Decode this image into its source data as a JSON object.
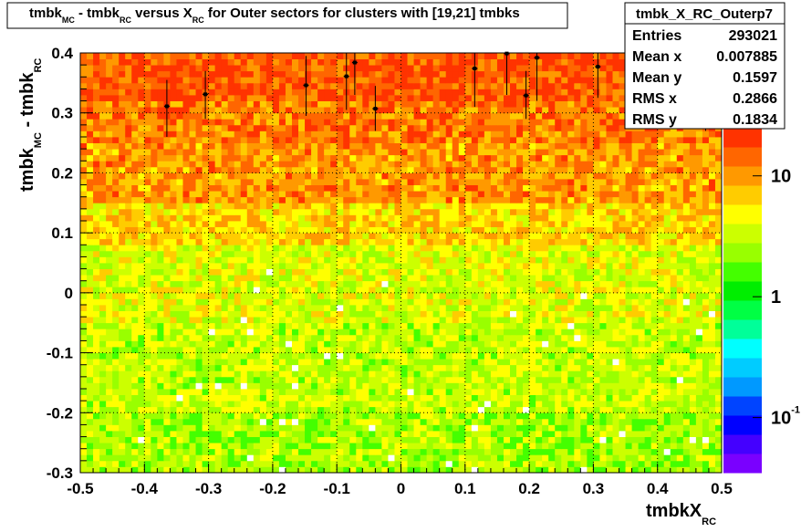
{
  "title": {
    "t1": "tmbk",
    "s1": "MC",
    "t2": " - tmbk",
    "s2": "RC",
    "t3": " versus X",
    "s3": "RC",
    "t4": " for Outer sectors for clusters with [19,21] tmbks"
  },
  "stats": {
    "name": "tmbk_X_RC_Outerp7",
    "rows": [
      {
        "label": "Entries",
        "value": "293021"
      },
      {
        "label": "Mean x",
        "value": "0.007885"
      },
      {
        "label": "Mean y",
        "value": "0.1597"
      },
      {
        "label": "RMS x",
        "value": "0.2866"
      },
      {
        "label": "RMS y",
        "value": "0.1834"
      }
    ]
  },
  "axes": {
    "xlabel_main": "tmbkX",
    "xlabel_sub": "RC",
    "ylabel_a": "tmbk",
    "ylabel_a_sub": "MC",
    "ylabel_b": " - tmbk",
    "ylabel_b_sub": "RC",
    "xticks": [
      "-0.5",
      "-0.4",
      "-0.3",
      "-0.2",
      "-0.1",
      "0",
      "0.1",
      "0.2",
      "0.3",
      "0.4",
      "0.5"
    ],
    "yticks": [
      "-0.3",
      "-0.2",
      "-0.1",
      "0",
      "0.1",
      "0.2",
      "0.3",
      "0.4"
    ],
    "zlabels": [
      {
        "base": "10",
        "exp": "",
        "value": 10
      },
      {
        "base": "1",
        "exp": "",
        "value": 1
      },
      {
        "base": "10",
        "exp": "-1",
        "value": 0.1
      }
    ]
  },
  "chart_data": {
    "type": "heatmap",
    "xlim": [
      -0.5,
      0.5
    ],
    "ylim": [
      -0.3,
      0.4
    ],
    "zscale": "log",
    "grid": true,
    "palette": [
      "#7a00ff",
      "#4400ff",
      "#0000ff",
      "#0044ff",
      "#0099ff",
      "#00ccff",
      "#00ffff",
      "#00ff99",
      "#00ff44",
      "#00ee00",
      "#44ff00",
      "#99ff00",
      "#ccff00",
      "#ffff00",
      "#ffcc00",
      "#ff9900",
      "#ff6600",
      "#ff3300"
    ],
    "profile_points": [
      {
        "x": -0.365,
        "y": 0.311,
        "ylo": 0.26,
        "yhi": 0.355
      },
      {
        "x": -0.305,
        "y": 0.331,
        "ylo": 0.29,
        "yhi": 0.37
      },
      {
        "x": -0.148,
        "y": 0.346,
        "ylo": 0.295,
        "yhi": 0.395
      },
      {
        "x": -0.085,
        "y": 0.361,
        "ylo": 0.305,
        "yhi": 0.4
      },
      {
        "x": -0.072,
        "y": 0.384,
        "ylo": 0.33,
        "yhi": 0.4
      },
      {
        "x": -0.04,
        "y": 0.307,
        "ylo": 0.27,
        "yhi": 0.345
      },
      {
        "x": 0.115,
        "y": 0.374,
        "ylo": 0.31,
        "yhi": 0.4
      },
      {
        "x": 0.165,
        "y": 0.399,
        "ylo": 0.33,
        "yhi": 0.4
      },
      {
        "x": 0.195,
        "y": 0.329,
        "ylo": 0.29,
        "yhi": 0.37
      },
      {
        "x": 0.212,
        "y": 0.392,
        "ylo": 0.32,
        "yhi": 0.4
      },
      {
        "x": 0.307,
        "y": 0.377,
        "ylo": 0.325,
        "yhi": 0.4
      },
      {
        "x": 0.385,
        "y": 0.359,
        "ylo": 0.32,
        "yhi": 0.39
      },
      {
        "x": 0.412,
        "y": 0.311,
        "ylo": 0.29,
        "yhi": 0.335
      },
      {
        "x": 0.445,
        "y": 0.386,
        "ylo": 0.36,
        "yhi": 0.4
      },
      {
        "x": 0.475,
        "y": 0.289,
        "ylo": 0.27,
        "yhi": 0.31
      }
    ]
  }
}
